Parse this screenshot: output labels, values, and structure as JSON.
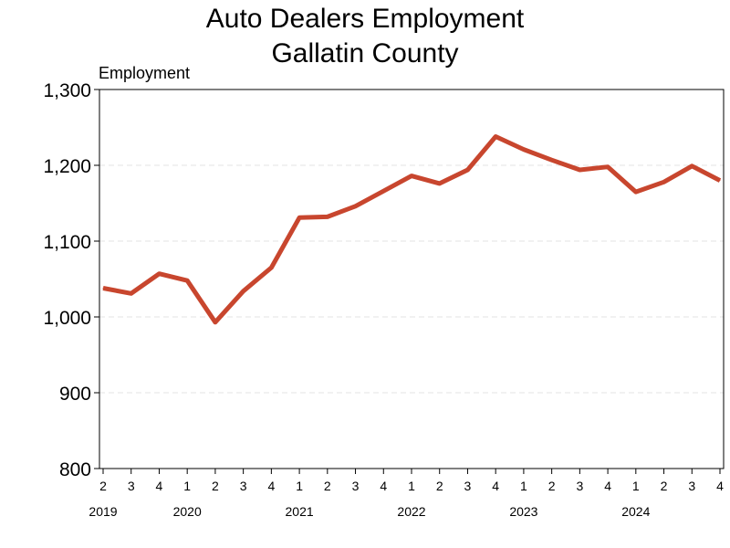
{
  "chart_data": {
    "type": "line",
    "title_lines": [
      "Auto Dealers Employment",
      "Gallatin County"
    ],
    "ylabel": "Employment",
    "ylim": [
      800,
      1300
    ],
    "yticks": [
      800,
      900,
      1000,
      1100,
      1200,
      1300
    ],
    "ytick_labels": [
      "800",
      "900",
      "1,000",
      "1,100",
      "1,200",
      "1,300"
    ],
    "grid": "horizontal dashed",
    "categories": [
      "2",
      "3",
      "4",
      "1",
      "2",
      "3",
      "4",
      "1",
      "2",
      "3",
      "4",
      "1",
      "2",
      "3",
      "4",
      "1",
      "2",
      "3",
      "4",
      "1",
      "2",
      "3",
      "4"
    ],
    "year_labels": [
      {
        "label": "2019",
        "index": 0
      },
      {
        "label": "2020",
        "index": 3
      },
      {
        "label": "2021",
        "index": 7
      },
      {
        "label": "2022",
        "index": 11
      },
      {
        "label": "2023",
        "index": 15
      },
      {
        "label": "2024",
        "index": 19
      }
    ],
    "series": [
      {
        "color": "#c8462e",
        "values": [
          1038,
          1031,
          1057,
          1048,
          993,
          1034,
          1065,
          1131,
          1132,
          1146,
          1166,
          1186,
          1176,
          1194,
          1238,
          1221,
          1207,
          1194,
          1198,
          1165,
          1178,
          1199,
          1180
        ]
      }
    ]
  }
}
